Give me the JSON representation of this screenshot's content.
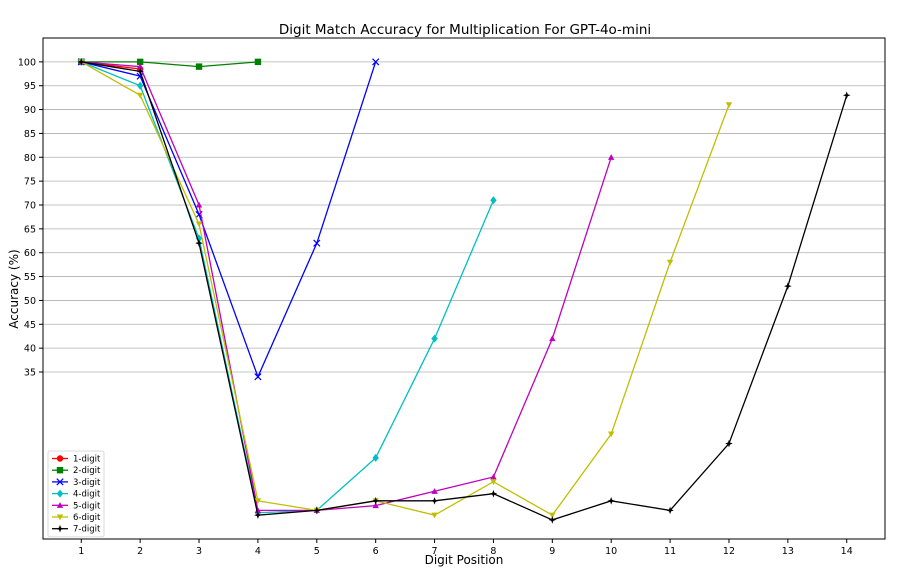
{
  "chart_data": {
    "type": "line",
    "title": "Digit Match Accuracy for Multiplication For GPT-4o-mini",
    "xlabel": "Digit Position",
    "ylabel": "Accuracy (%)",
    "xlim": [
      0.35,
      14.65
    ],
    "ylim": [
      0,
      105
    ],
    "xticks": [
      1,
      2,
      3,
      4,
      5,
      6,
      7,
      8,
      9,
      10,
      11,
      12,
      13,
      14
    ],
    "yticks": [
      35,
      40,
      45,
      50,
      55,
      60,
      65,
      70,
      75,
      80,
      85,
      90,
      95,
      100
    ],
    "grid": "horizontal",
    "legend_position": "lower-left",
    "series": [
      {
        "name": "1-digit",
        "color": "#ff0000",
        "marker": "circle",
        "x": [
          1,
          2
        ],
        "y": [
          100,
          98.5
        ]
      },
      {
        "name": "2-digit",
        "color": "#008000",
        "marker": "square",
        "x": [
          1,
          2,
          3,
          4
        ],
        "y": [
          100,
          100,
          99,
          100
        ]
      },
      {
        "name": "3-digit",
        "color": "#0000ff",
        "marker": "x",
        "x": [
          1,
          2,
          3,
          4,
          5,
          6
        ],
        "y": [
          100,
          97,
          68,
          34,
          62,
          100
        ]
      },
      {
        "name": "4-digit",
        "color": "#00bfbf",
        "marker": "diamond",
        "x": [
          1,
          2,
          3,
          4,
          5,
          6,
          7,
          8
        ],
        "y": [
          100,
          95,
          63,
          5.5,
          6,
          17,
          42,
          71
        ]
      },
      {
        "name": "5-digit",
        "color": "#bf00bf",
        "marker": "triangle-up",
        "x": [
          1,
          2,
          3,
          4,
          5,
          6,
          7,
          8,
          9,
          10
        ],
        "y": [
          100,
          99,
          70,
          6,
          6,
          7,
          10,
          13,
          42,
          80
        ]
      },
      {
        "name": "6-digit",
        "color": "#bfbf00",
        "marker": "triangle-down",
        "x": [
          1,
          2,
          3,
          4,
          5,
          6,
          7,
          8,
          9,
          10,
          11,
          12
        ],
        "y": [
          100,
          93,
          66,
          8,
          6,
          8,
          5,
          12,
          5,
          22,
          58,
          91
        ]
      },
      {
        "name": "7-digit",
        "color": "#000000",
        "marker": "star",
        "x": [
          1,
          2,
          3,
          4,
          5,
          6,
          7,
          8,
          9,
          10,
          11,
          12,
          13,
          14
        ],
        "y": [
          100,
          98,
          62,
          5,
          6,
          8,
          8,
          9.5,
          4,
          8,
          6,
          20,
          53,
          93
        ]
      }
    ]
  }
}
